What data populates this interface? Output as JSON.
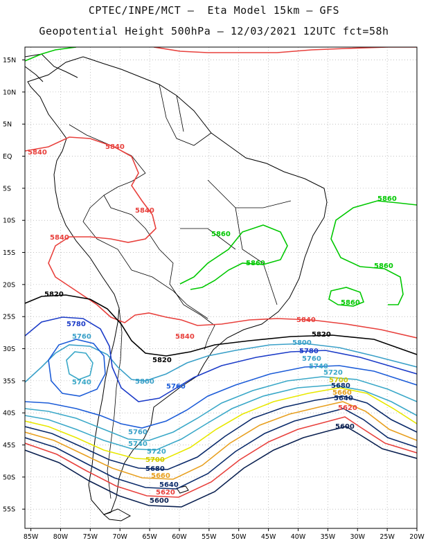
{
  "title": {
    "line1": "CPTEC/INPE/MCT –  Eta Model 15km – GFS",
    "line2": "Geopotential Height 500hPa – 12/03/2021 12UTC fct=58h"
  },
  "map": {
    "lon_range": [
      -86,
      -20
    ],
    "lat_range": [
      -58,
      17
    ],
    "lat_ticks": [
      {
        "v": 15,
        "t": "15N"
      },
      {
        "v": 10,
        "t": "10N"
      },
      {
        "v": 5,
        "t": "5N"
      },
      {
        "v": 0,
        "t": "EQ"
      },
      {
        "v": -5,
        "t": "5S"
      },
      {
        "v": -10,
        "t": "10S"
      },
      {
        "v": -15,
        "t": "15S"
      },
      {
        "v": -20,
        "t": "20S"
      },
      {
        "v": -25,
        "t": "25S"
      },
      {
        "v": -30,
        "t": "30S"
      },
      {
        "v": -35,
        "t": "35S"
      },
      {
        "v": -40,
        "t": "40S"
      },
      {
        "v": -45,
        "t": "45S"
      },
      {
        "v": -50,
        "t": "50S"
      },
      {
        "v": -55,
        "t": "55S"
      }
    ],
    "lon_ticks": [
      {
        "v": -85,
        "t": "85W"
      },
      {
        "v": -80,
        "t": "80W"
      },
      {
        "v": -75,
        "t": "75W"
      },
      {
        "v": -70,
        "t": "70W"
      },
      {
        "v": -65,
        "t": "65W"
      },
      {
        "v": -60,
        "t": "60W"
      },
      {
        "v": -55,
        "t": "55W"
      },
      {
        "v": -50,
        "t": "50W"
      },
      {
        "v": -45,
        "t": "45W"
      },
      {
        "v": -40,
        "t": "40W"
      },
      {
        "v": -35,
        "t": "35W"
      },
      {
        "v": -30,
        "t": "30W"
      },
      {
        "v": -25,
        "t": "25W"
      },
      {
        "v": -20,
        "t": "20W"
      }
    ],
    "grid": "dotted",
    "land_color": "#ffffff",
    "border_color": "#000000"
  },
  "contours": [
    {
      "level": 5860,
      "color": "#00c800",
      "labels": [
        "5860",
        "5860",
        "5860",
        "5860",
        "5860"
      ]
    },
    {
      "level": 5840,
      "color": "#e8403c",
      "labels": [
        "5840",
        "5840",
        "5840",
        "5840",
        "5840",
        "5840"
      ]
    },
    {
      "level": 5820,
      "color": "#000000",
      "labels": [
        "5820",
        "5820",
        "5820"
      ]
    },
    {
      "level": 5800,
      "color": "#3aa0c8",
      "labels": [
        "5800",
        "5800"
      ]
    },
    {
      "level": 5780,
      "color": "#1c3cc8",
      "labels": [
        "5780",
        "5780"
      ]
    },
    {
      "level": 5760,
      "color": "#1c5cd8",
      "labels": [
        "5760",
        "5760",
        "5760",
        "5760"
      ]
    },
    {
      "level": 5740,
      "color": "#3aa8c8",
      "labels": [
        "5740",
        "5740",
        "5740"
      ]
    },
    {
      "level": 5720,
      "color": "#3aa8c8",
      "labels": [
        "5720",
        "5720"
      ]
    },
    {
      "level": 5700,
      "color": "#e8e800",
      "labels": [
        "5700",
        "5700"
      ]
    },
    {
      "level": 5680,
      "color": "#0a2a6a",
      "labels": [
        "5680",
        "5680"
      ]
    },
    {
      "level": 5660,
      "color": "#e8a020",
      "labels": [
        "5660",
        "5660"
      ]
    },
    {
      "level": 5640,
      "color": "#0a2a6a",
      "labels": [
        "5640",
        "5640"
      ]
    },
    {
      "level": 5620,
      "color": "#e8403c",
      "labels": [
        "5620",
        "5620"
      ]
    },
    {
      "level": 5600,
      "color": "#0a2050",
      "labels": [
        "5600",
        "5600"
      ]
    }
  ]
}
